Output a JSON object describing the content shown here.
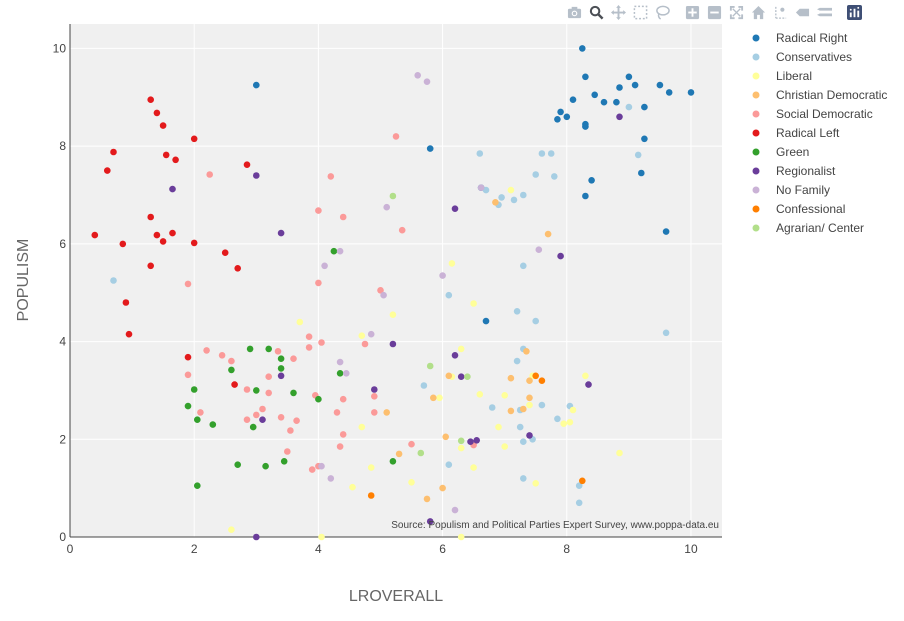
{
  "modebar": {
    "buttons": [
      {
        "name": "camera-icon"
      },
      {
        "name": "zoom-icon",
        "active": true
      },
      {
        "name": "pan-icon"
      },
      {
        "name": "box-select-icon"
      },
      {
        "name": "lasso-select-icon"
      },
      {
        "gap": true
      },
      {
        "name": "zoom-in-icon"
      },
      {
        "name": "zoom-out-icon"
      },
      {
        "name": "autoscale-icon"
      },
      {
        "name": "reset-axes-icon"
      },
      {
        "name": "spike-lines-icon"
      },
      {
        "name": "hover-closest-icon"
      },
      {
        "name": "hover-compare-icon"
      },
      {
        "gap": true
      },
      {
        "name": "plotly-logo-icon",
        "brand": true
      }
    ],
    "icon_color": "#b6bfc9",
    "active_color": "#4b4f55",
    "brand_color": "#3f4f75"
  },
  "chart_data": {
    "type": "scatter",
    "xlabel": "LROVERALL",
    "ylabel": "POPULISM",
    "xlim": [
      0,
      10.5
    ],
    "ylim": [
      0,
      10.5
    ],
    "xticks": [
      0,
      2,
      4,
      6,
      8,
      10
    ],
    "yticks": [
      0,
      2,
      4,
      6,
      8,
      10
    ],
    "grid": true,
    "plot_background": "#f0f0f0",
    "legend_placement": "right",
    "annotation": "Source: Populism and Political Parties Expert Survey, www.poppa-data.eu",
    "series": [
      {
        "name": "Radical Right",
        "color": "#1f78b4",
        "points": [
          [
            8.25,
            10.0
          ],
          [
            8.3,
            9.42
          ],
          [
            9.0,
            9.42
          ],
          [
            8.45,
            9.05
          ],
          [
            8.85,
            9.2
          ],
          [
            9.5,
            9.25
          ],
          [
            9.65,
            9.1
          ],
          [
            10.0,
            9.1
          ],
          [
            9.1,
            9.25
          ],
          [
            8.1,
            8.95
          ],
          [
            8.6,
            8.9
          ],
          [
            8.8,
            8.9
          ],
          [
            9.25,
            8.8
          ],
          [
            7.9,
            8.7
          ],
          [
            8.0,
            8.6
          ],
          [
            7.85,
            8.55
          ],
          [
            8.3,
            8.45
          ],
          [
            8.3,
            8.4
          ],
          [
            9.25,
            8.15
          ],
          [
            8.4,
            7.3
          ],
          [
            9.2,
            7.45
          ],
          [
            8.3,
            6.98
          ],
          [
            9.6,
            6.25
          ],
          [
            6.7,
            4.42
          ],
          [
            5.8,
            7.95
          ],
          [
            6.62,
            7.15
          ],
          [
            3.0,
            9.25
          ]
        ]
      },
      {
        "name": "Conservatives",
        "color": "#a6cee3",
        "points": [
          [
            0.7,
            5.25
          ],
          [
            6.6,
            7.85
          ],
          [
            7.6,
            7.85
          ],
          [
            7.75,
            7.85
          ],
          [
            7.5,
            7.42
          ],
          [
            7.8,
            7.38
          ],
          [
            6.7,
            7.1
          ],
          [
            6.95,
            6.95
          ],
          [
            7.3,
            7.0
          ],
          [
            7.15,
            6.9
          ],
          [
            6.9,
            6.8
          ],
          [
            7.3,
            5.55
          ],
          [
            6.1,
            4.95
          ],
          [
            7.2,
            4.62
          ],
          [
            7.5,
            4.42
          ],
          [
            7.2,
            3.6
          ],
          [
            7.3,
            3.85
          ],
          [
            7.25,
            2.6
          ],
          [
            7.6,
            2.7
          ],
          [
            6.8,
            2.65
          ],
          [
            7.25,
            2.25
          ],
          [
            7.85,
            2.42
          ],
          [
            8.05,
            2.68
          ],
          [
            7.3,
            1.2
          ],
          [
            8.2,
            1.05
          ],
          [
            8.2,
            0.7
          ],
          [
            6.1,
            1.48
          ],
          [
            5.7,
            3.1
          ],
          [
            9.15,
            7.82
          ],
          [
            9.0,
            8.8
          ],
          [
            9.6,
            4.18
          ],
          [
            7.45,
            2.0
          ],
          [
            7.3,
            1.95
          ]
        ]
      },
      {
        "name": "Liberal",
        "color": "#ffff99",
        "points": [
          [
            3.7,
            4.4
          ],
          [
            4.7,
            4.12
          ],
          [
            5.2,
            4.55
          ],
          [
            6.15,
            5.6
          ],
          [
            6.5,
            4.78
          ],
          [
            7.1,
            7.1
          ],
          [
            6.3,
            3.85
          ],
          [
            6.15,
            3.28
          ],
          [
            7.45,
            3.3
          ],
          [
            8.3,
            3.3
          ],
          [
            7.0,
            2.9
          ],
          [
            6.6,
            2.92
          ],
          [
            8.1,
            2.6
          ],
          [
            8.05,
            2.35
          ],
          [
            7.95,
            2.32
          ],
          [
            7.4,
            2.7
          ],
          [
            6.9,
            2.25
          ],
          [
            6.3,
            1.82
          ],
          [
            7.0,
            1.85
          ],
          [
            4.7,
            2.25
          ],
          [
            5.95,
            2.85
          ],
          [
            4.85,
            1.42
          ],
          [
            5.5,
            1.12
          ],
          [
            6.5,
            1.42
          ],
          [
            7.5,
            1.1
          ],
          [
            8.85,
            1.72
          ],
          [
            4.55,
            1.02
          ],
          [
            2.6,
            0.15
          ],
          [
            4.05,
            0.0
          ],
          [
            6.3,
            0.0
          ]
        ]
      },
      {
        "name": "Christian Democratic",
        "color": "#fdbf6f",
        "points": [
          [
            6.85,
            6.85
          ],
          [
            7.7,
            6.2
          ],
          [
            7.35,
            3.8
          ],
          [
            7.4,
            3.2
          ],
          [
            7.1,
            3.25
          ],
          [
            7.4,
            2.85
          ],
          [
            6.1,
            3.3
          ],
          [
            5.1,
            2.55
          ],
          [
            5.85,
            2.85
          ],
          [
            7.1,
            2.58
          ],
          [
            7.3,
            2.62
          ],
          [
            6.05,
            2.05
          ],
          [
            5.3,
            1.7
          ],
          [
            6.0,
            1.0
          ],
          [
            5.75,
            0.78
          ]
        ]
      },
      {
        "name": "Social Democratic",
        "color": "#fb9a99",
        "points": [
          [
            2.25,
            7.42
          ],
          [
            4.2,
            7.38
          ],
          [
            5.25,
            8.2
          ],
          [
            4.0,
            6.68
          ],
          [
            4.4,
            6.55
          ],
          [
            5.35,
            6.28
          ],
          [
            4.0,
            5.2
          ],
          [
            1.9,
            5.18
          ],
          [
            5.0,
            5.05
          ],
          [
            3.85,
            4.1
          ],
          [
            3.35,
            3.8
          ],
          [
            3.6,
            3.65
          ],
          [
            2.2,
            3.82
          ],
          [
            2.45,
            3.72
          ],
          [
            3.85,
            3.88
          ],
          [
            4.05,
            3.98
          ],
          [
            4.75,
            3.95
          ],
          [
            1.9,
            3.32
          ],
          [
            3.2,
            3.28
          ],
          [
            2.85,
            3.02
          ],
          [
            3.2,
            2.95
          ],
          [
            2.1,
            2.55
          ],
          [
            3.1,
            2.62
          ],
          [
            3.0,
            2.5
          ],
          [
            3.4,
            2.45
          ],
          [
            3.65,
            2.38
          ],
          [
            2.85,
            2.4
          ],
          [
            3.55,
            2.18
          ],
          [
            4.9,
            2.88
          ],
          [
            4.3,
            2.55
          ],
          [
            4.4,
            2.82
          ],
          [
            4.4,
            2.1
          ],
          [
            3.95,
            2.9
          ],
          [
            3.5,
            1.75
          ],
          [
            3.9,
            1.38
          ],
          [
            4.0,
            1.45
          ],
          [
            4.35,
            1.85
          ],
          [
            4.9,
            2.55
          ],
          [
            5.5,
            1.9
          ],
          [
            6.5,
            1.88
          ],
          [
            2.6,
            3.6
          ]
        ]
      },
      {
        "name": "Radical Left",
        "color": "#e31a1c",
        "points": [
          [
            1.3,
            8.95
          ],
          [
            1.4,
            8.68
          ],
          [
            1.5,
            8.42
          ],
          [
            2.0,
            8.15
          ],
          [
            0.7,
            7.88
          ],
          [
            1.55,
            7.82
          ],
          [
            1.7,
            7.72
          ],
          [
            2.85,
            7.62
          ],
          [
            0.6,
            7.5
          ],
          [
            1.3,
            6.55
          ],
          [
            1.4,
            6.18
          ],
          [
            1.65,
            6.22
          ],
          [
            1.5,
            6.05
          ],
          [
            0.4,
            6.18
          ],
          [
            0.85,
            6.0
          ],
          [
            2.0,
            6.02
          ],
          [
            2.5,
            5.82
          ],
          [
            2.7,
            5.5
          ],
          [
            1.3,
            5.55
          ],
          [
            0.9,
            4.8
          ],
          [
            0.95,
            4.15
          ],
          [
            1.9,
            3.68
          ],
          [
            2.65,
            3.12
          ]
        ]
      },
      {
        "name": "Green",
        "color": "#33a02c",
        "points": [
          [
            4.25,
            5.85
          ],
          [
            2.9,
            3.85
          ],
          [
            3.2,
            3.85
          ],
          [
            3.4,
            3.65
          ],
          [
            3.4,
            3.45
          ],
          [
            2.6,
            3.42
          ],
          [
            4.35,
            3.35
          ],
          [
            3.0,
            3.0
          ],
          [
            2.0,
            3.02
          ],
          [
            3.6,
            2.95
          ],
          [
            4.0,
            2.82
          ],
          [
            1.9,
            2.68
          ],
          [
            2.05,
            2.4
          ],
          [
            2.3,
            2.3
          ],
          [
            2.95,
            2.25
          ],
          [
            2.7,
            1.48
          ],
          [
            3.15,
            1.45
          ],
          [
            3.45,
            1.55
          ],
          [
            5.2,
            1.55
          ],
          [
            2.05,
            1.05
          ]
        ]
      },
      {
        "name": "Regionalist",
        "color": "#6a3d9a",
        "points": [
          [
            1.65,
            7.12
          ],
          [
            3.0,
            7.4
          ],
          [
            8.85,
            8.6
          ],
          [
            3.4,
            6.22
          ],
          [
            6.2,
            6.72
          ],
          [
            7.9,
            5.75
          ],
          [
            5.2,
            3.95
          ],
          [
            6.2,
            3.72
          ],
          [
            3.4,
            3.3
          ],
          [
            6.3,
            3.28
          ],
          [
            8.35,
            3.12
          ],
          [
            4.9,
            3.02
          ],
          [
            3.1,
            2.4
          ],
          [
            6.55,
            1.98
          ],
          [
            6.45,
            1.95
          ],
          [
            7.4,
            2.08
          ],
          [
            5.8,
            0.32
          ],
          [
            3.0,
            0.0
          ]
        ]
      },
      {
        "name": "No Family",
        "color": "#cab2d6",
        "points": [
          [
            5.6,
            9.45
          ],
          [
            5.75,
            9.32
          ],
          [
            6.62,
            7.15
          ],
          [
            5.1,
            6.75
          ],
          [
            4.35,
            5.85
          ],
          [
            4.1,
            5.55
          ],
          [
            6.0,
            5.35
          ],
          [
            7.55,
            5.88
          ],
          [
            5.05,
            4.95
          ],
          [
            4.85,
            4.15
          ],
          [
            4.35,
            3.58
          ],
          [
            4.45,
            3.35
          ],
          [
            4.05,
            1.45
          ],
          [
            4.2,
            1.2
          ],
          [
            6.2,
            0.55
          ]
        ]
      },
      {
        "name": "Confessional",
        "color": "#ff7f00",
        "points": [
          [
            7.5,
            3.3
          ],
          [
            7.6,
            3.2
          ],
          [
            8.25,
            1.15
          ],
          [
            4.85,
            0.85
          ]
        ]
      },
      {
        "name": "Agrarian/ Center",
        "color": "#b2df8a",
        "points": [
          [
            5.2,
            6.98
          ],
          [
            5.8,
            3.5
          ],
          [
            6.4,
            3.28
          ],
          [
            6.3,
            1.97
          ],
          [
            5.65,
            1.72
          ]
        ]
      }
    ]
  }
}
